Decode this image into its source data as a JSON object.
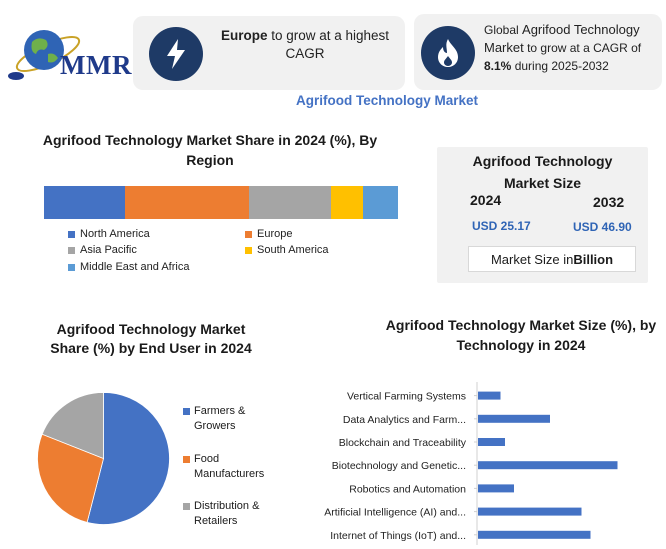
{
  "logo": {
    "text": "MMR"
  },
  "highlights": {
    "cagr_region": {
      "bold": "Europe",
      "text": " to grow at a highest CAGR"
    },
    "cagr_global": {
      "line1": "Global ",
      "line1b": "Agrifood Technology",
      "line2": "Market",
      "line2b": " to grow at a CAGR of",
      "value": "8.1%",
      "line3": " during 2025-2032"
    }
  },
  "main_title": "Agrifood Technology Market",
  "market_size": {
    "title_line1": "Agrifood Technology",
    "title_line2": "Market Size",
    "year_a": "2024",
    "year_b": "2032",
    "value_a": "USD 25.17",
    "value_b": "USD 46.90",
    "unit_prefix": "Market Size in ",
    "unit_bold": "Billion"
  },
  "colors": {
    "blue": "#4472c4",
    "orange": "#ed7d31",
    "gray": "#a5a5a5",
    "yellow": "#ffc000",
    "lightblue": "#5b9bd5",
    "navy": "#1e3a66"
  },
  "chart_data": [
    {
      "type": "bar",
      "orientation": "horizontal-stacked",
      "title": "Agrifood Technology Market Share in 2024 (%), By Region",
      "series": [
        {
          "name": "North America",
          "values": [
            23
          ],
          "color": "#4472c4"
        },
        {
          "name": "Europe",
          "values": [
            35
          ],
          "color": "#ed7d31"
        },
        {
          "name": "Asia Pacific",
          "values": [
            23
          ],
          "color": "#a5a5a5"
        },
        {
          "name": "South America",
          "values": [
            9
          ],
          "color": "#ffc000"
        },
        {
          "name": "Middle East and Africa",
          "values": [
            10
          ],
          "color": "#5b9bd5"
        }
      ],
      "legend": "bottom"
    },
    {
      "type": "pie",
      "title": "Agrifood Technology Market Share (%) by End User in 2024",
      "series": [
        {
          "name": "Farmers & Growers",
          "values": [
            54
          ],
          "color": "#4472c4"
        },
        {
          "name": "Food Manufacturers",
          "values": [
            27
          ],
          "color": "#ed7d31"
        },
        {
          "name": "Distribution & Retailers",
          "values": [
            19
          ],
          "color": "#a5a5a5"
        }
      ],
      "legend": "right"
    },
    {
      "type": "bar",
      "orientation": "horizontal",
      "title": "Agrifood Technology Market Size (%), by Technology in 2024",
      "categories": [
        "Vertical Farming Systems",
        "Data Analytics and Farm...",
        "Blockchain and Traceability",
        "Biotechnology and Genetic...",
        "Robotics and Automation",
        "Artificial Intelligence (AI) and...",
        "Internet of Things (IoT) and..."
      ],
      "values": [
        5,
        16,
        6,
        31,
        8,
        23,
        25
      ],
      "color": "#4472c4"
    }
  ]
}
